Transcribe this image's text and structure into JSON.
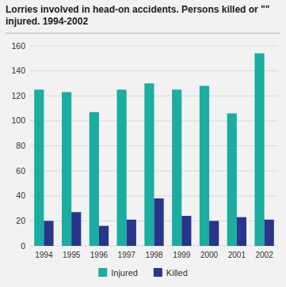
{
  "chart_data": {
    "type": "bar",
    "title": "Lorries involved in head-on accidents. Persons killed or ʺʺ",
    "subtitle": "injured. 1994-2002",
    "categories": [
      "1994",
      "1995",
      "1996",
      "1997",
      "1998",
      "1999",
      "2000",
      "2001",
      "2002"
    ],
    "series": [
      {
        "name": "Injured",
        "color": "#1aada0",
        "values": [
          125,
          123,
          107,
          125,
          130,
          125,
          128,
          106,
          154
        ]
      },
      {
        "name": "Killed",
        "color": "#27358a",
        "values": [
          20,
          27,
          16,
          21,
          38,
          24,
          20,
          23,
          21
        ]
      }
    ],
    "ylim": [
      0,
      160
    ],
    "yticks": [
      0,
      20,
      40,
      60,
      80,
      100,
      120,
      140,
      160
    ],
    "grid": true,
    "legend": "bottom"
  }
}
